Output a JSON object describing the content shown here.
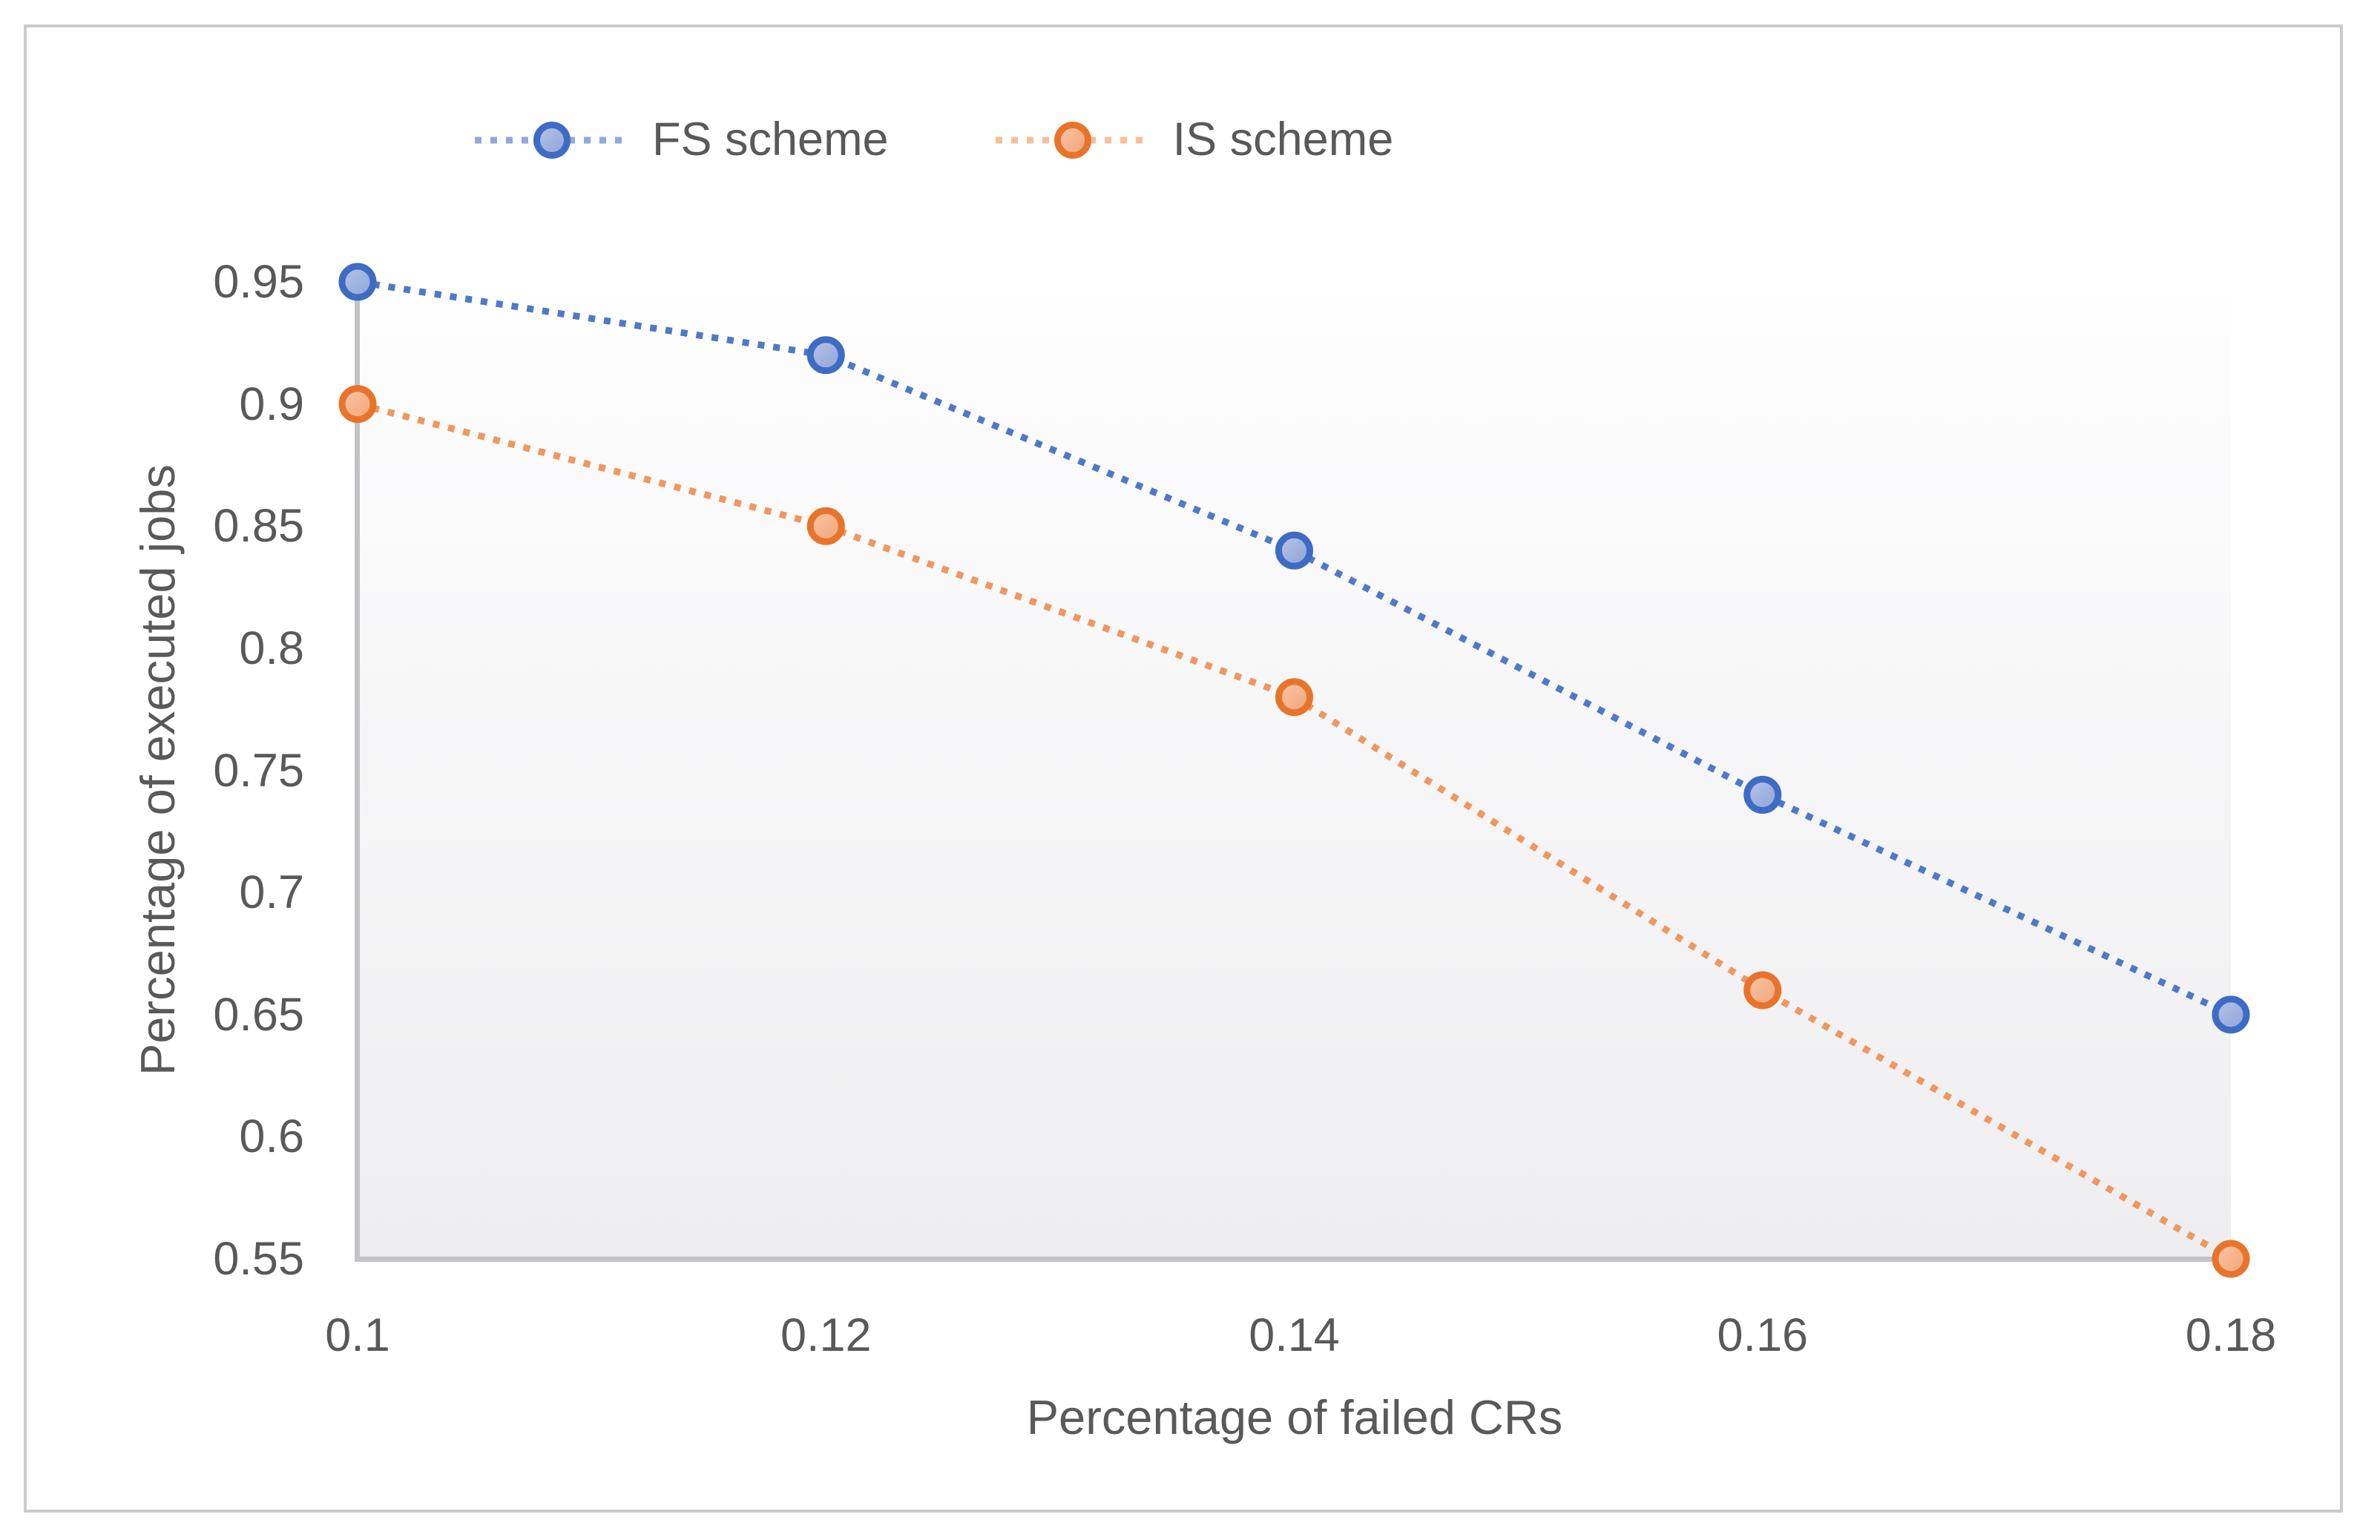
{
  "chart_data": {
    "type": "line",
    "title": "",
    "x": [
      0.1,
      0.12,
      0.14,
      0.16,
      0.18
    ],
    "x_tick_labels": [
      "0.1",
      "0.12",
      "0.14",
      "0.16",
      "0.18"
    ],
    "y_tick_labels": [
      "0.95",
      "0.9",
      "0.85",
      "0.8",
      "0.75",
      "0.7",
      "0.65",
      "0.6",
      "0.55"
    ],
    "xlim": [
      0.1,
      0.18
    ],
    "ylim": [
      0.55,
      0.95
    ],
    "xlabel": "Percentage of failed CRs",
    "ylabel": "Percentage of executed jobs",
    "grid": false,
    "legend_position": "top-left",
    "line_style": "dotted",
    "marker": "circle",
    "series": [
      {
        "name": "FS scheme",
        "values": [
          0.95,
          0.92,
          0.84,
          0.74,
          0.65
        ],
        "line_color": "#4E79C9",
        "legend_line_color": "#8FAADC",
        "marker_fill_light": "#B7C4E8",
        "marker_fill_dark": "#8DA3D8",
        "marker_border": "#3E6BC4"
      },
      {
        "name": "IS scheme",
        "values": [
          0.9,
          0.85,
          0.78,
          0.66,
          0.55
        ],
        "line_color": "#F0965F",
        "legend_line_color": "#F5BF9E",
        "marker_fill_light": "#F9C6A6",
        "marker_fill_dark": "#F2A478",
        "marker_border": "#E8742B"
      }
    ],
    "colors": {
      "axis": "#C2C3C4",
      "text": "#595959",
      "plot_bg_top": "#FFFFFF",
      "plot_bg_bottom": "#EEEEF0",
      "figure_border": "#CBCBCB"
    }
  }
}
